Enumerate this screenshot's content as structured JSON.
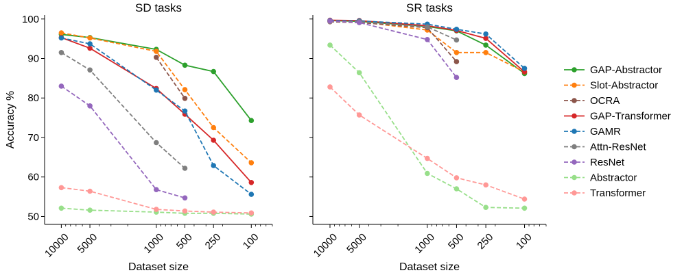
{
  "chart_data": [
    {
      "type": "line",
      "title": "SD tasks",
      "xlabel": "Dataset size",
      "ylabel": "Accuracy %",
      "x": [
        10000,
        5000,
        1000,
        500,
        250,
        100
      ],
      "xscale": "log-reversed",
      "xlim": [
        15000,
        60
      ],
      "ylim": [
        48,
        101
      ],
      "yticks": [
        50,
        60,
        70,
        80,
        90,
        100
      ],
      "series": [
        {
          "name": "GAP-Abstractor",
          "color": "#2ca02c",
          "dashed": false,
          "values": [
            96.1,
            95.3,
            92.3,
            88.3,
            86.7,
            74.3
          ]
        },
        {
          "name": "Slot-Abstractor",
          "color": "#ff7f0e",
          "dashed": true,
          "values": [
            96.5,
            95.2,
            91.8,
            82.1,
            72.5,
            63.6
          ]
        },
        {
          "name": "OCRA",
          "color": "#8c564b",
          "dashed": true,
          "values": [
            null,
            null,
            90.3,
            79.9,
            null,
            null
          ]
        },
        {
          "name": "GAP-Transformer",
          "color": "#d62728",
          "dashed": false,
          "values": [
            95.3,
            92.6,
            82.4,
            75.9,
            69.3,
            58.6
          ]
        },
        {
          "name": "GAMR",
          "color": "#1f77b4",
          "dashed": true,
          "values": [
            95.2,
            93.7,
            82.0,
            76.7,
            62.9,
            55.6
          ]
        },
        {
          "name": "Attn-ResNet",
          "color": "#7f7f7f",
          "dashed": true,
          "values": [
            91.5,
            87.1,
            68.7,
            62.2,
            null,
            null
          ]
        },
        {
          "name": "ResNet",
          "color": "#9467bd",
          "dashed": true,
          "values": [
            83.0,
            78.0,
            56.8,
            54.7,
            null,
            null
          ]
        },
        {
          "name": "Abstractor",
          "color": "#98df8a",
          "dashed": true,
          "values": [
            52.1,
            51.6,
            51.1,
            50.8,
            50.8,
            50.6
          ]
        },
        {
          "name": "Transformer",
          "color": "#ff9896",
          "dashed": true,
          "values": [
            57.3,
            56.4,
            51.8,
            51.4,
            51.1,
            50.9
          ]
        }
      ]
    },
    {
      "type": "line",
      "title": "SR tasks",
      "xlabel": "Dataset size",
      "ylabel": "",
      "x": [
        10000,
        5000,
        1000,
        500,
        250,
        100
      ],
      "xscale": "log-reversed",
      "xlim": [
        15000,
        60
      ],
      "ylim": [
        48,
        101
      ],
      "yticks": [
        50,
        60,
        70,
        80,
        90,
        100
      ],
      "series": [
        {
          "name": "GAP-Abstractor",
          "color": "#2ca02c",
          "dashed": false,
          "values": [
            99.6,
            99.4,
            98.1,
            97.0,
            93.4,
            86.2
          ]
        },
        {
          "name": "Slot-Abstractor",
          "color": "#ff7f0e",
          "dashed": true,
          "values": [
            99.5,
            99.3,
            97.2,
            91.5,
            91.5,
            86.6
          ]
        },
        {
          "name": "OCRA",
          "color": "#8c564b",
          "dashed": true,
          "values": [
            99.3,
            99.1,
            97.8,
            89.2,
            null,
            null
          ]
        },
        {
          "name": "GAP-Transformer",
          "color": "#d62728",
          "dashed": false,
          "values": [
            99.7,
            99.6,
            98.3,
            97.1,
            95.1,
            86.6
          ]
        },
        {
          "name": "GAMR",
          "color": "#1f77b4",
          "dashed": true,
          "values": [
            99.6,
            99.5,
            98.7,
            97.4,
            96.2,
            87.5
          ]
        },
        {
          "name": "Attn-ResNet",
          "color": "#7f7f7f",
          "dashed": true,
          "values": [
            99.4,
            99.3,
            98.0,
            94.7,
            null,
            null
          ]
        },
        {
          "name": "ResNet",
          "color": "#9467bd",
          "dashed": true,
          "values": [
            99.5,
            99.1,
            94.8,
            85.2,
            null,
            null
          ]
        },
        {
          "name": "Abstractor",
          "color": "#98df8a",
          "dashed": true,
          "values": [
            93.4,
            86.4,
            60.9,
            57.0,
            52.3,
            52.1
          ]
        },
        {
          "name": "Transformer",
          "color": "#ff9896",
          "dashed": true,
          "values": [
            82.8,
            75.7,
            64.7,
            59.8,
            58.0,
            54.4
          ]
        }
      ]
    }
  ],
  "legend": {
    "placement": "right",
    "entries": [
      "GAP-Abstractor",
      "Slot-Abstractor",
      "OCRA",
      "GAP-Transformer",
      "GAMR",
      "Attn-ResNet",
      "ResNet",
      "Abstractor",
      "Transformer"
    ]
  }
}
